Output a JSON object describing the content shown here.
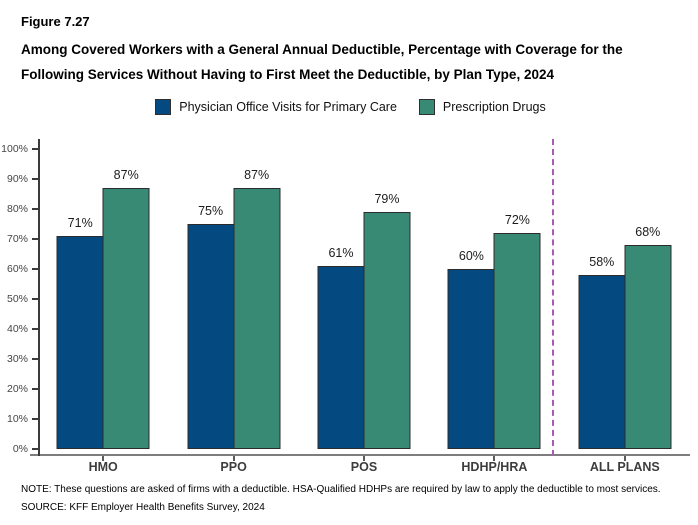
{
  "figure": {
    "label": "Figure 7.27",
    "title": "Among Covered Workers with a General Annual Deductible, Percentage with Coverage for the Following Services Without Having to First Meet the Deductible, by Plan Type, 2024"
  },
  "legend": [
    {
      "label": "Physician Office Visits for Primary Care"
    },
    {
      "label": "Prescription Drugs"
    }
  ],
  "chart_data": {
    "type": "bar",
    "categories": [
      "HMO",
      "PPO",
      "POS",
      "HDHP/HRA",
      "ALL PLANS"
    ],
    "series": [
      {
        "name": "Physician Office Visits for Primary Care",
        "color": "#04497f",
        "values": [
          71,
          75,
          61,
          60,
          58
        ]
      },
      {
        "name": "Prescription Drugs",
        "color": "#388a74",
        "values": [
          87,
          87,
          79,
          72,
          68
        ]
      }
    ],
    "value_suffix": "%",
    "ylabel": "",
    "xlabel": "",
    "ylim": [
      0,
      100
    ],
    "ytick_step": 10,
    "grid": false,
    "legend_position": "top",
    "separator_after_category": "HDHP/HRA",
    "separator_color": "#a85ab5",
    "axis_color": "#3b3b3b"
  },
  "notes": {
    "note": "NOTE: These questions are asked of firms with a deductible. HSA-Qualified HDHPs are required by law to apply the deductible to most services.",
    "source": "SOURCE: KFF Employer Health Benefits Survey, 2024"
  }
}
